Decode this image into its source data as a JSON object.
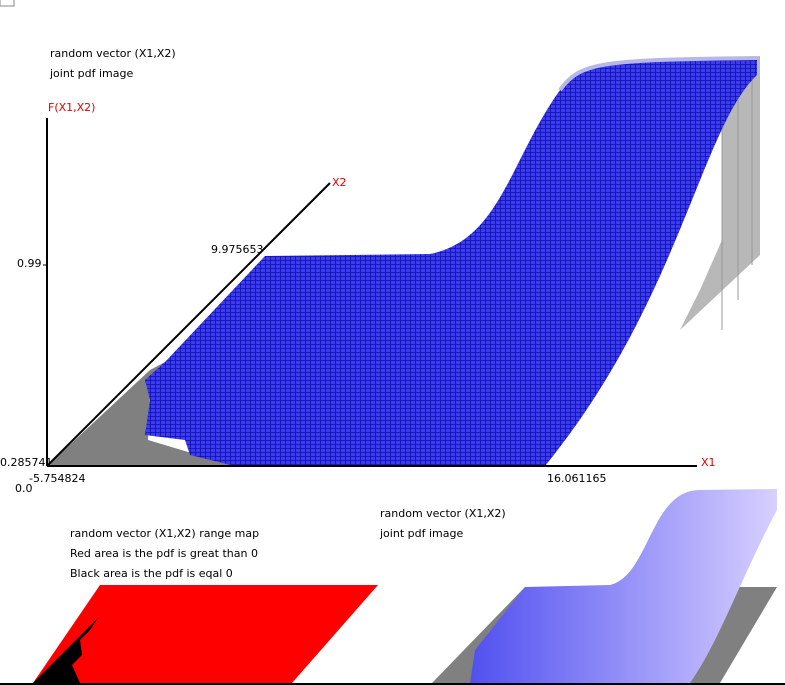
{
  "main_plot": {
    "caption": [
      "random vector (X1,X2)",
      "joint pdf image"
    ],
    "z_axis_label": "F(X1,X2)",
    "x1_axis_label": "X1",
    "x2_axis_label": "X2",
    "z_tick_high": "0.99",
    "z_tick_low": "0.285741",
    "z_origin": "0.0",
    "x1_min": "-5.754824",
    "x1_max": "16.061165",
    "x2_max": "9.975653"
  },
  "range_map": {
    "caption": [
      "random vector (X1,X2) range map",
      "Red area is the pdf is great than 0",
      "Black area is the pdf is eqal 0"
    ]
  },
  "small_plot": {
    "caption": [
      "random vector (X1,X2)",
      "joint pdf image"
    ]
  }
}
